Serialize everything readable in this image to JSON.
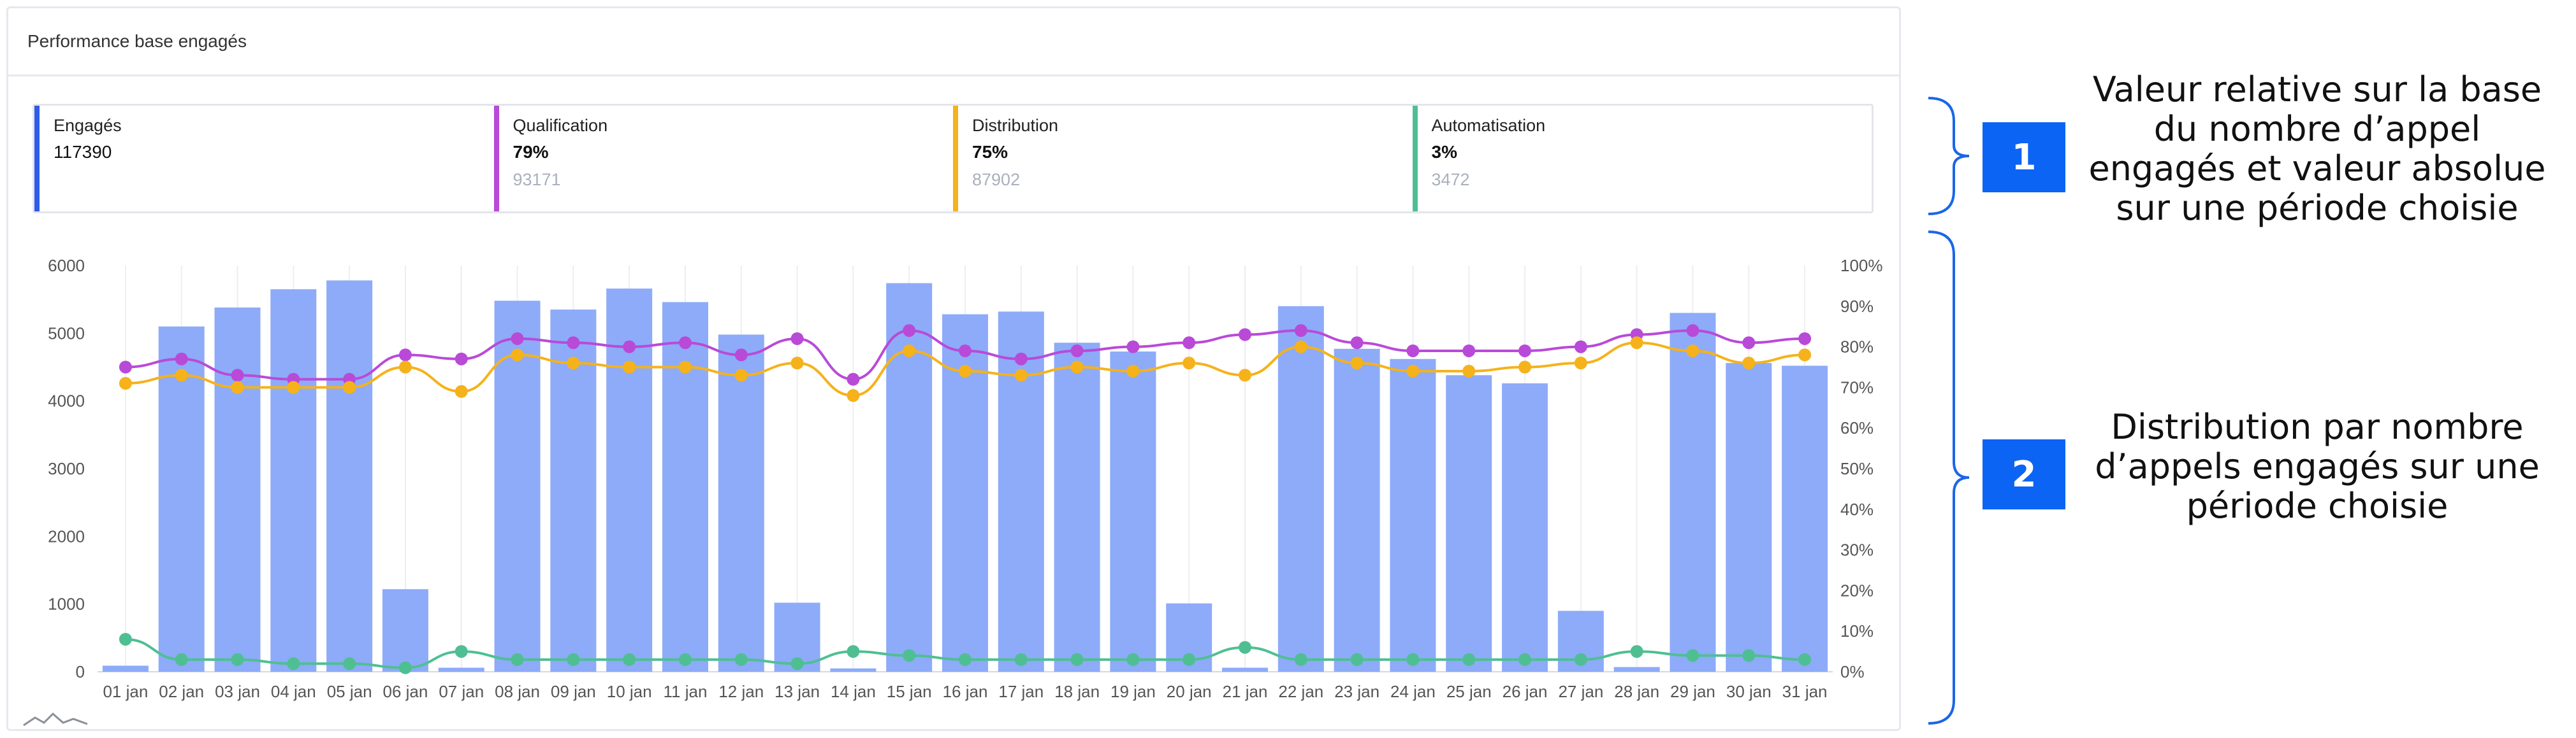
{
  "card": {
    "title": "Performance base engagés"
  },
  "kpis": [
    {
      "label": "Engagés",
      "value": "117390",
      "sub": "",
      "color": "#2f5be8"
    },
    {
      "label": "Qualification",
      "value": "79%",
      "sub": "93171",
      "color": "#b94ad8"
    },
    {
      "label": "Distribution",
      "value": "75%",
      "sub": "87902",
      "color": "#f5b21b"
    },
    {
      "label": "Automatisation",
      "value": "3%",
      "sub": "3472",
      "color": "#4fbf93"
    }
  ],
  "annotations": [
    {
      "badge": "1",
      "text": "Valeur relative sur la base du nombre d’appel engagés et valeur absolue sur une période choisie"
    },
    {
      "badge": "2",
      "text": "Distribution par nombre d’appels engagés sur une période choisie"
    }
  ],
  "chart_data": {
    "type": "bar",
    "categories": [
      "01 jan",
      "02 jan",
      "03 jan",
      "04 jan",
      "05 jan",
      "06 jan",
      "07 jan",
      "08 jan",
      "09 jan",
      "10 jan",
      "11 jan",
      "12 jan",
      "13 jan",
      "14 jan",
      "15 jan",
      "16 jan",
      "17 jan",
      "18 jan",
      "19 jan",
      "20 jan",
      "21 jan",
      "22 jan",
      "23 jan",
      "24 jan",
      "25 jan",
      "26 jan",
      "27 jan",
      "28 jan",
      "29 jan",
      "30 jan",
      "31 jan"
    ],
    "y_left": {
      "range": [
        0,
        6000
      ],
      "ticks": [
        "0",
        "1000",
        "2000",
        "3000",
        "4000",
        "5000",
        "6000"
      ]
    },
    "y_right": {
      "range": [
        0,
        100
      ],
      "ticks": [
        "0%",
        "10%",
        "20%",
        "30%",
        "40%",
        "50%",
        "60%",
        "70%",
        "80%",
        "90%",
        "100%"
      ]
    },
    "bars": {
      "color": "#8dabf8",
      "values": [
        90,
        5100,
        5380,
        5650,
        5780,
        1220,
        60,
        5480,
        5350,
        5660,
        5460,
        4980,
        1020,
        50,
        5740,
        5280,
        5320,
        4860,
        4730,
        1010,
        60,
        5400,
        4770,
        4620,
        4380,
        4260,
        900,
        70,
        5300,
        4560,
        4520
      ]
    },
    "series": [
      {
        "color": "#b94ad8",
        "values": [
          75,
          77,
          73,
          72,
          72,
          78,
          77,
          82,
          81,
          80,
          81,
          78,
          82,
          72,
          84,
          79,
          77,
          79,
          80,
          81,
          83,
          84,
          81,
          79,
          79,
          79,
          80,
          83,
          84,
          81,
          82
        ]
      },
      {
        "color": "#f5b21b",
        "values": [
          71,
          73,
          70,
          70,
          70,
          75,
          69,
          78,
          76,
          75,
          75,
          73,
          76,
          68,
          79,
          74,
          73,
          75,
          74,
          76,
          73,
          80,
          76,
          74,
          74,
          75,
          76,
          81,
          79,
          76,
          78
        ]
      },
      {
        "color": "#4fbf93",
        "values": [
          8,
          3,
          3,
          2,
          2,
          1,
          5,
          3,
          3,
          3,
          3,
          3,
          2,
          5,
          4,
          3,
          3,
          3,
          3,
          3,
          6,
          3,
          3,
          3,
          3,
          3,
          3,
          5,
          4,
          4,
          3
        ]
      }
    ],
    "grid": "vertical"
  }
}
